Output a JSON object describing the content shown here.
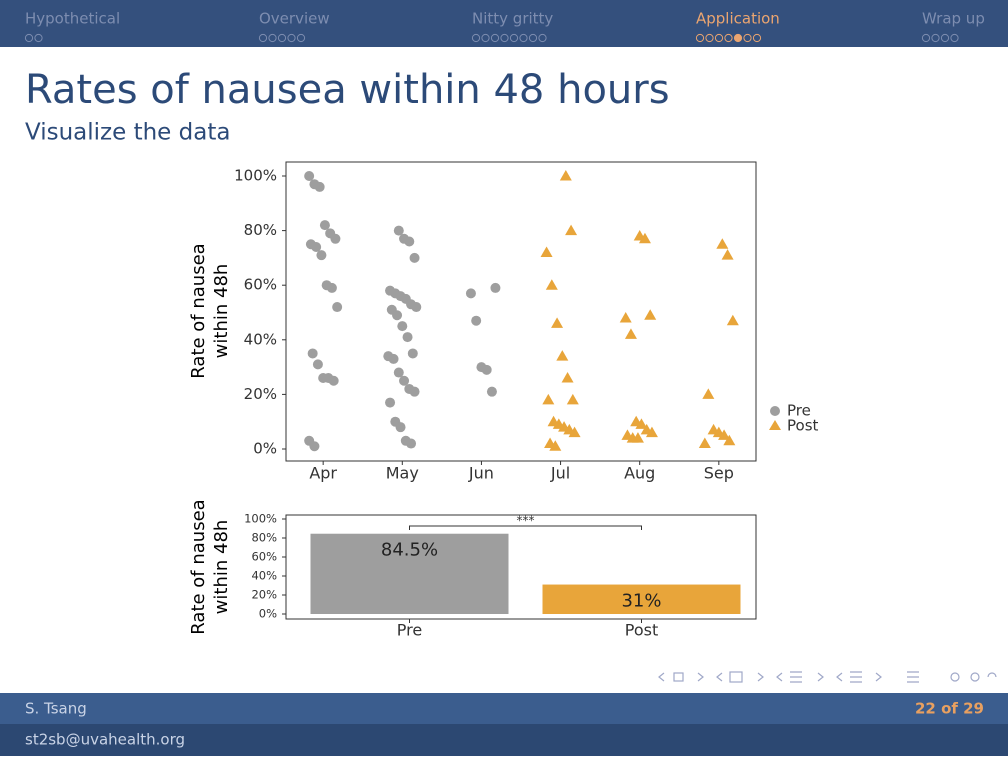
{
  "header": {
    "sections": [
      "Hypothetical",
      "Overview",
      "Nitty gritty",
      "Application",
      "Wrap up"
    ],
    "title": "Rates of nausea within 48 hours",
    "subtitle": "Visualize the data"
  },
  "chart_data": [
    {
      "type": "scatter",
      "ylabel": [
        "Rate of nausea",
        "within 48h"
      ],
      "categories": [
        "Apr",
        "May",
        "Jun",
        "Jul",
        "Aug",
        "Sep"
      ],
      "ylim": [
        0,
        100
      ],
      "yticks": [
        {
          "value": 0,
          "label": "0%"
        },
        {
          "value": 20,
          "label": "20%"
        },
        {
          "value": 40,
          "label": "40%"
        },
        {
          "value": 60,
          "label": "60%"
        },
        {
          "value": 80,
          "label": "80%"
        },
        {
          "value": 100,
          "label": "100%"
        }
      ],
      "legend": "right",
      "series": [
        {
          "name": "Pre",
          "color": "#9e9e9e",
          "marker": "circle",
          "points": [
            {
              "x": "Apr",
              "value": 100
            },
            {
              "x": "Apr",
              "value": 97
            },
            {
              "x": "Apr",
              "value": 96
            },
            {
              "x": "Apr",
              "value": 82
            },
            {
              "x": "Apr",
              "value": 79
            },
            {
              "x": "Apr",
              "value": 77
            },
            {
              "x": "Apr",
              "value": 75
            },
            {
              "x": "Apr",
              "value": 74
            },
            {
              "x": "Apr",
              "value": 71
            },
            {
              "x": "Apr",
              "value": 60
            },
            {
              "x": "Apr",
              "value": 59
            },
            {
              "x": "Apr",
              "value": 52
            },
            {
              "x": "Apr",
              "value": 35
            },
            {
              "x": "Apr",
              "value": 31
            },
            {
              "x": "Apr",
              "value": 26
            },
            {
              "x": "Apr",
              "value": 26
            },
            {
              "x": "Apr",
              "value": 25
            },
            {
              "x": "Apr",
              "value": 3
            },
            {
              "x": "Apr",
              "value": 1
            },
            {
              "x": "May",
              "value": 80
            },
            {
              "x": "May",
              "value": 77
            },
            {
              "x": "May",
              "value": 76
            },
            {
              "x": "May",
              "value": 70
            },
            {
              "x": "May",
              "value": 58
            },
            {
              "x": "May",
              "value": 57
            },
            {
              "x": "May",
              "value": 56
            },
            {
              "x": "May",
              "value": 55
            },
            {
              "x": "May",
              "value": 53
            },
            {
              "x": "May",
              "value": 52
            },
            {
              "x": "May",
              "value": 51
            },
            {
              "x": "May",
              "value": 49
            },
            {
              "x": "May",
              "value": 45
            },
            {
              "x": "May",
              "value": 41
            },
            {
              "x": "May",
              "value": 35
            },
            {
              "x": "May",
              "value": 34
            },
            {
              "x": "May",
              "value": 33
            },
            {
              "x": "May",
              "value": 28
            },
            {
              "x": "May",
              "value": 25
            },
            {
              "x": "May",
              "value": 22
            },
            {
              "x": "May",
              "value": 21
            },
            {
              "x": "May",
              "value": 17
            },
            {
              "x": "May",
              "value": 10
            },
            {
              "x": "May",
              "value": 8
            },
            {
              "x": "May",
              "value": 3
            },
            {
              "x": "May",
              "value": 2
            },
            {
              "x": "Jun",
              "value": 59
            },
            {
              "x": "Jun",
              "value": 57
            },
            {
              "x": "Jun",
              "value": 47
            },
            {
              "x": "Jun",
              "value": 30
            },
            {
              "x": "Jun",
              "value": 29
            },
            {
              "x": "Jun",
              "value": 21
            }
          ]
        },
        {
          "name": "Post",
          "color": "#e8a53a",
          "marker": "triangle",
          "points": [
            {
              "x": "Jul",
              "value": 100
            },
            {
              "x": "Jul",
              "value": 80
            },
            {
              "x": "Jul",
              "value": 72
            },
            {
              "x": "Jul",
              "value": 60
            },
            {
              "x": "Jul",
              "value": 46
            },
            {
              "x": "Jul",
              "value": 34
            },
            {
              "x": "Jul",
              "value": 26
            },
            {
              "x": "Jul",
              "value": 18
            },
            {
              "x": "Jul",
              "value": 18
            },
            {
              "x": "Jul",
              "value": 10
            },
            {
              "x": "Jul",
              "value": 9
            },
            {
              "x": "Jul",
              "value": 8
            },
            {
              "x": "Jul",
              "value": 7
            },
            {
              "x": "Jul",
              "value": 6
            },
            {
              "x": "Jul",
              "value": 2
            },
            {
              "x": "Jul",
              "value": 1
            },
            {
              "x": "Aug",
              "value": 78
            },
            {
              "x": "Aug",
              "value": 77
            },
            {
              "x": "Aug",
              "value": 49
            },
            {
              "x": "Aug",
              "value": 48
            },
            {
              "x": "Aug",
              "value": 42
            },
            {
              "x": "Aug",
              "value": 10
            },
            {
              "x": "Aug",
              "value": 9
            },
            {
              "x": "Aug",
              "value": 7
            },
            {
              "x": "Aug",
              "value": 6
            },
            {
              "x": "Aug",
              "value": 5
            },
            {
              "x": "Aug",
              "value": 4
            },
            {
              "x": "Aug",
              "value": 4
            },
            {
              "x": "Sep",
              "value": 75
            },
            {
              "x": "Sep",
              "value": 71
            },
            {
              "x": "Sep",
              "value": 47
            },
            {
              "x": "Sep",
              "value": 20
            },
            {
              "x": "Sep",
              "value": 7
            },
            {
              "x": "Sep",
              "value": 6
            },
            {
              "x": "Sep",
              "value": 5
            },
            {
              "x": "Sep",
              "value": 3
            },
            {
              "x": "Sep",
              "value": 2
            }
          ]
        }
      ]
    },
    {
      "type": "bar",
      "ylabel": [
        "Rate of nausea",
        "within 48h"
      ],
      "categories": [
        "Pre",
        "Post"
      ],
      "values": [
        84.5,
        31
      ],
      "value_labels": [
        "84.5%",
        "31%"
      ],
      "colors": [
        "#9e9e9e",
        "#e8a53a"
      ],
      "ylim": [
        0,
        100
      ],
      "yticks": [
        {
          "value": 0,
          "label": "0%"
        },
        {
          "value": 20,
          "label": "20%"
        },
        {
          "value": 40,
          "label": "40%"
        },
        {
          "value": 60,
          "label": "60%"
        },
        {
          "value": 80,
          "label": "80%"
        },
        {
          "value": 100,
          "label": "100%"
        }
      ],
      "annotation": "***"
    }
  ],
  "footer": {
    "author": "S. Tsang",
    "page": "22 of 29",
    "email": "st2sb@uvahealth.org"
  }
}
